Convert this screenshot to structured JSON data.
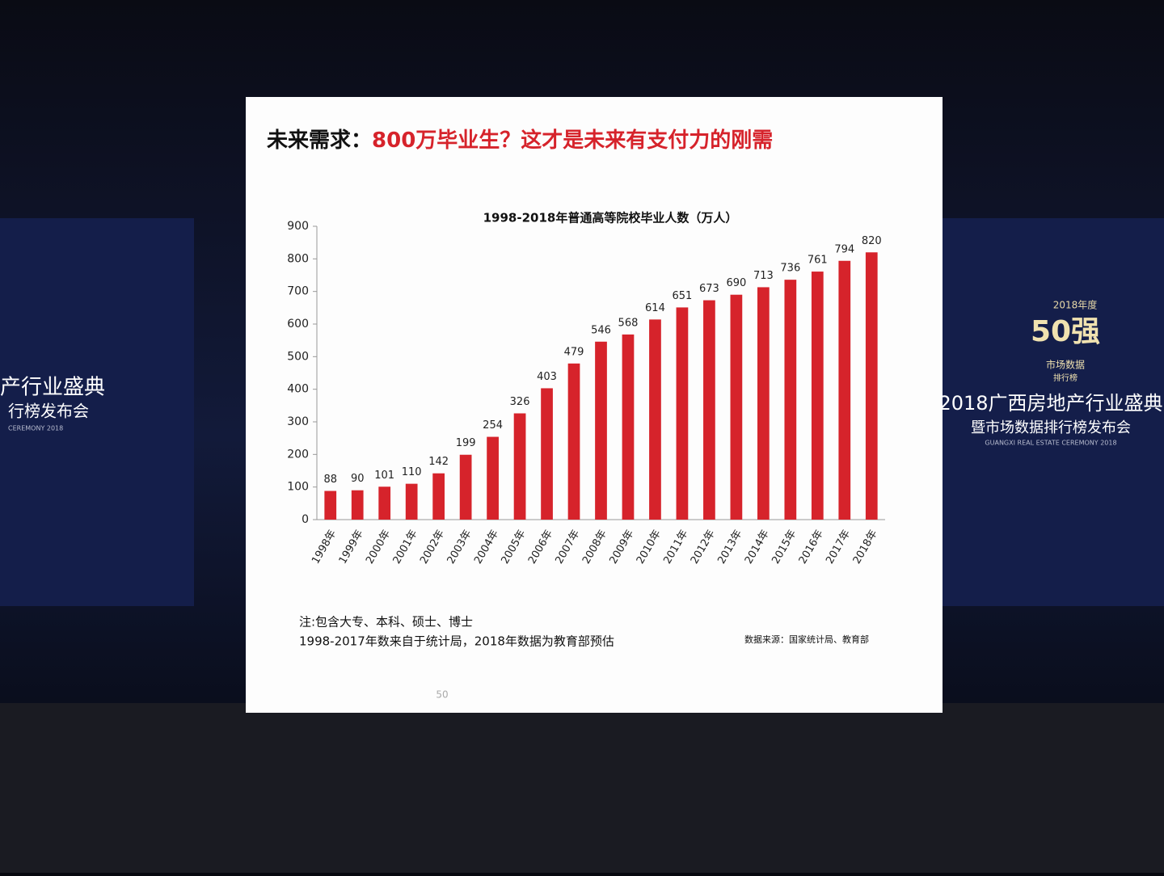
{
  "slide": {
    "title_black": "未来需求：",
    "title_red": "800万毕业生？这才是未来有支付力的刚需",
    "note_1": "注:包含大专、本科、硕士、博士",
    "note_2": "1998-2017年数来自于统计局，2018年数据为教育部预估",
    "source": "数据来源：国家统计局、教育部",
    "page_number": "50"
  },
  "banner_right": {
    "year": "2018年度",
    "rank": "50强",
    "sub_1": "市场数据",
    "sub_2": "排行榜",
    "headline": "2018广西房地产行业盛典",
    "subhead": "暨市场数据排行榜发布会",
    "english": "GUANGXI REAL ESTATE CEREMONY 2018"
  },
  "banner_left": {
    "headline": "产行业盛典",
    "subhead": "行榜发布会",
    "english": "CEREMONY 2018"
  },
  "chart_data": {
    "type": "bar",
    "title": "1998-2018年普通高等院校毕业人数（万人）",
    "categories": [
      "1998年",
      "1999年",
      "2000年",
      "2001年",
      "2002年",
      "2003年",
      "2004年",
      "2005年",
      "2006年",
      "2007年",
      "2008年",
      "2009年",
      "2010年",
      "2011年",
      "2012年",
      "2013年",
      "2014年",
      "2015年",
      "2016年",
      "2017年",
      "2018年"
    ],
    "values": [
      88,
      90,
      101,
      110,
      142,
      199,
      254,
      326,
      403,
      479,
      546,
      568,
      614,
      651,
      673,
      690,
      713,
      736,
      761,
      794,
      820
    ],
    "color": "#d6232b",
    "ylim": [
      0,
      900
    ],
    "yticks": [
      0,
      100,
      200,
      300,
      400,
      500,
      600,
      700,
      800,
      900
    ],
    "grid": false
  }
}
